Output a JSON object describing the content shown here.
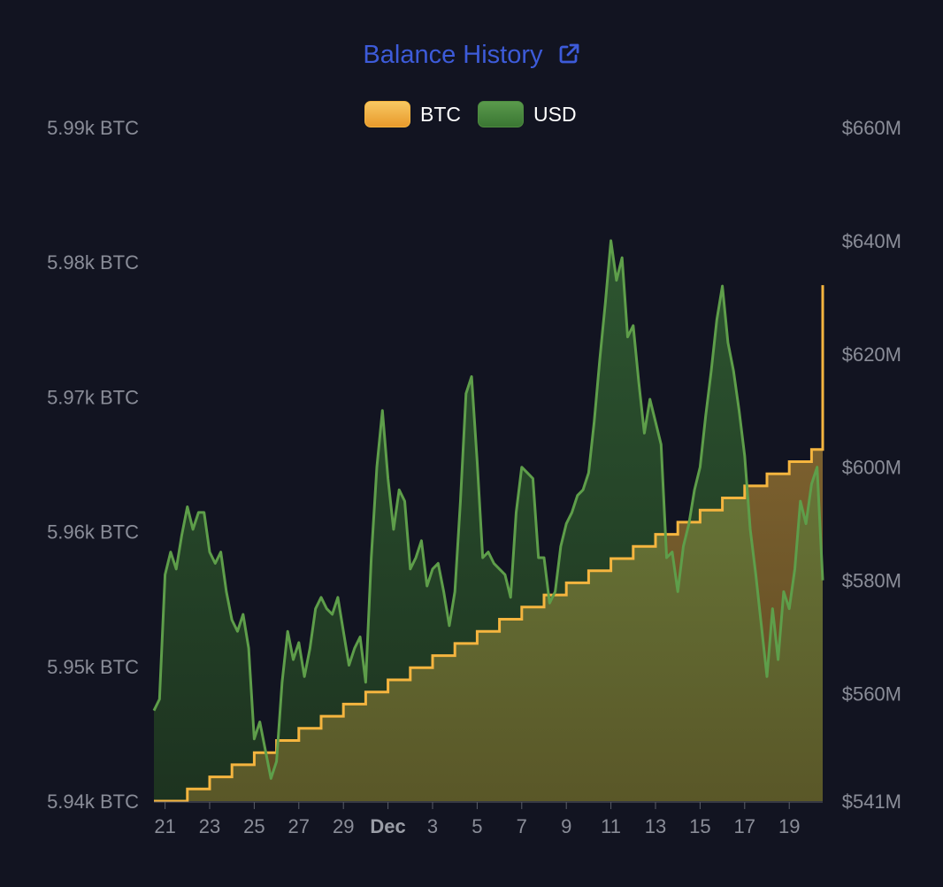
{
  "colors": {
    "background": "#121421",
    "title": "#3d5bd9",
    "btc_line": "#f5b53f",
    "usd_line": "#5e9e4a",
    "axis_text": "#8a8d98",
    "axis_bold": "#9a9da6"
  },
  "chart_data": {
    "type": "area",
    "title": "Balance History",
    "title_icon": "external-link-icon",
    "legend": [
      "BTC",
      "USD"
    ],
    "legend_placement": "top-center",
    "grid": false,
    "x_tick_labels": [
      "21",
      "23",
      "25",
      "27",
      "29",
      "Dec",
      "3",
      "5",
      "7",
      "9",
      "11",
      "13",
      "15",
      "17",
      "19"
    ],
    "y_left": {
      "unit": "BTC",
      "range": [
        5940,
        5990
      ],
      "ticks": [
        5940,
        5950,
        5960,
        5970,
        5980,
        5990
      ],
      "tick_labels": [
        "5.94k BTC",
        "5.95k BTC",
        "5.96k BTC",
        "5.97k BTC",
        "5.98k BTC",
        "5.99k BTC"
      ]
    },
    "y_right": {
      "unit": "USD",
      "range": [
        541,
        660
      ],
      "ticks": [
        541,
        560,
        580,
        600,
        620,
        640,
        660
      ],
      "tick_labels": [
        "$541M",
        "$560M",
        "$580M",
        "$600M",
        "$620M",
        "$640M",
        "$660M"
      ]
    },
    "series": [
      {
        "name": "BTC",
        "axis": "left",
        "x": [
          "2023-11-20T12:00",
          "2023-11-22",
          "2023-11-23",
          "2023-11-24",
          "2023-11-25",
          "2023-11-26",
          "2023-11-27",
          "2023-11-28",
          "2023-11-29",
          "2023-11-30",
          "2023-12-01",
          "2023-12-02",
          "2023-12-03",
          "2023-12-04",
          "2023-12-05",
          "2023-12-06",
          "2023-12-07",
          "2023-12-08",
          "2023-12-09",
          "2023-12-10",
          "2023-12-11",
          "2023-12-12",
          "2023-12-13",
          "2023-12-14",
          "2023-12-15",
          "2023-12-16",
          "2023-12-17",
          "2023-12-18",
          "2023-12-19",
          "2023-12-20",
          "2023-12-20T12:00"
        ],
        "values": [
          5940.0,
          5940.9,
          5941.8,
          5942.7,
          5943.6,
          5944.5,
          5945.4,
          5946.3,
          5947.2,
          5948.1,
          5949.0,
          5949.9,
          5950.8,
          5951.7,
          5952.6,
          5953.5,
          5954.4,
          5955.3,
          5956.2,
          5957.1,
          5958.0,
          5958.9,
          5959.8,
          5960.7,
          5961.6,
          5962.5,
          5963.4,
          5964.3,
          5965.2,
          5966.1,
          5978.3
        ]
      },
      {
        "name": "USD",
        "axis": "right",
        "x": [
          "2023-11-20T12:00",
          "2023-11-20T18:00",
          "2023-11-21",
          "2023-11-21T06:00",
          "2023-11-21T12:00",
          "2023-11-21T18:00",
          "2023-11-22",
          "2023-11-22T06:00",
          "2023-11-22T12:00",
          "2023-11-22T18:00",
          "2023-11-23",
          "2023-11-23T06:00",
          "2023-11-23T12:00",
          "2023-11-23T18:00",
          "2023-11-24",
          "2023-11-24T06:00",
          "2023-11-24T12:00",
          "2023-11-24T18:00",
          "2023-11-25",
          "2023-11-25T06:00",
          "2023-11-25T12:00",
          "2023-11-25T18:00",
          "2023-11-26",
          "2023-11-26T06:00",
          "2023-11-26T12:00",
          "2023-11-26T18:00",
          "2023-11-27",
          "2023-11-27T06:00",
          "2023-11-27T12:00",
          "2023-11-27T18:00",
          "2023-11-28",
          "2023-11-28T06:00",
          "2023-11-28T12:00",
          "2023-11-28T18:00",
          "2023-11-29",
          "2023-11-29T06:00",
          "2023-11-29T12:00",
          "2023-11-29T18:00",
          "2023-11-30",
          "2023-11-30T06:00",
          "2023-11-30T12:00",
          "2023-11-30T18:00",
          "2023-12-01",
          "2023-12-01T06:00",
          "2023-12-01T12:00",
          "2023-12-01T18:00",
          "2023-12-02",
          "2023-12-02T06:00",
          "2023-12-02T12:00",
          "2023-12-02T18:00",
          "2023-12-03",
          "2023-12-03T06:00",
          "2023-12-03T12:00",
          "2023-12-03T18:00",
          "2023-12-04",
          "2023-12-04T06:00",
          "2023-12-04T12:00",
          "2023-12-04T18:00",
          "2023-12-05",
          "2023-12-05T06:00",
          "2023-12-05T12:00",
          "2023-12-05T18:00",
          "2023-12-06",
          "2023-12-06T06:00",
          "2023-12-06T12:00",
          "2023-12-06T18:00",
          "2023-12-07",
          "2023-12-07T06:00",
          "2023-12-07T12:00",
          "2023-12-07T18:00",
          "2023-12-08",
          "2023-12-08T06:00",
          "2023-12-08T12:00",
          "2023-12-08T18:00",
          "2023-12-09",
          "2023-12-09T06:00",
          "2023-12-09T12:00",
          "2023-12-09T18:00",
          "2023-12-10",
          "2023-12-10T06:00",
          "2023-12-10T12:00",
          "2023-12-10T18:00",
          "2023-12-11",
          "2023-12-11T06:00",
          "2023-12-11T12:00",
          "2023-12-11T18:00",
          "2023-12-12",
          "2023-12-12T06:00",
          "2023-12-12T12:00",
          "2023-12-12T18:00",
          "2023-12-13",
          "2023-12-13T06:00",
          "2023-12-13T12:00",
          "2023-12-13T18:00",
          "2023-12-14",
          "2023-12-14T06:00",
          "2023-12-14T12:00",
          "2023-12-14T18:00",
          "2023-12-15",
          "2023-12-15T06:00",
          "2023-12-15T12:00",
          "2023-12-15T18:00",
          "2023-12-16",
          "2023-12-16T06:00",
          "2023-12-16T12:00",
          "2023-12-16T18:00",
          "2023-12-17",
          "2023-12-17T06:00",
          "2023-12-17T12:00",
          "2023-12-17T18:00",
          "2023-12-18",
          "2023-12-18T06:00",
          "2023-12-18T12:00",
          "2023-12-18T18:00",
          "2023-12-19",
          "2023-12-19T06:00",
          "2023-12-19T12:00",
          "2023-12-19T18:00",
          "2023-12-20",
          "2023-12-20T06:00",
          "2023-12-20T12:00"
        ],
        "values": [
          557,
          559,
          581,
          585,
          582,
          588,
          593,
          589,
          592,
          592,
          585,
          583,
          585,
          578,
          573,
          571,
          574,
          568,
          552,
          555,
          550,
          545,
          548,
          562,
          571,
          566,
          569,
          563,
          568,
          575,
          577,
          575,
          574,
          577,
          571,
          565,
          568,
          570,
          562,
          584,
          600,
          610,
          598,
          589,
          596,
          594,
          582,
          584,
          587,
          579,
          582,
          583,
          578,
          572,
          578,
          594,
          613,
          616,
          601,
          584,
          585,
          583,
          582,
          581,
          577,
          592,
          600,
          599,
          598,
          584,
          584,
          576,
          578,
          586,
          590,
          592,
          595,
          596,
          599,
          608,
          619,
          629,
          640,
          633,
          637,
          623,
          625,
          615,
          606,
          612,
          608,
          604,
          584,
          585,
          578,
          586,
          590,
          596,
          600,
          609,
          617,
          626,
          632,
          622,
          617,
          610,
          602,
          589,
          581,
          572,
          563,
          575,
          566,
          578,
          575,
          582,
          594,
          590,
          597,
          600,
          580
        ]
      }
    ]
  }
}
